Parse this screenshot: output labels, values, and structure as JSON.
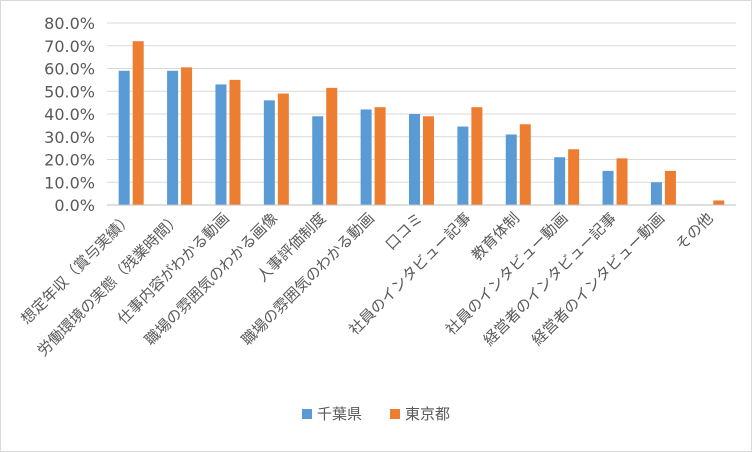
{
  "chart_data": {
    "type": "bar",
    "title": "",
    "xlabel": "",
    "ylabel": "",
    "ylim": [
      0,
      0.8
    ],
    "y_ticks": [
      "0.0%",
      "10.0%",
      "20.0%",
      "30.0%",
      "40.0%",
      "50.0%",
      "60.0%",
      "70.0%",
      "80.0%"
    ],
    "grid": true,
    "legend_position": "bottom",
    "categories": [
      "想定年収（賞与実績）",
      "労働環境の実態（残業時間）",
      "仕事内容がわかる動画",
      "職場の雰囲気のわかる画像",
      "人事評価制度",
      "職場の雰囲気のわかる動画",
      "口コミ",
      "社員のインタビュー記事",
      "教育体制",
      "社員のインタビュー動画",
      "経営者のインタビュー記事",
      "経営者のインタビュー動画",
      "その他"
    ],
    "series": [
      {
        "name": "千葉県",
        "color": "#5b9bd5",
        "values": [
          0.59,
          0.59,
          0.53,
          0.46,
          0.39,
          0.42,
          0.4,
          0.345,
          0.31,
          0.21,
          0.15,
          0.1,
          0.0
        ]
      },
      {
        "name": "東京都",
        "color": "#ed7d31",
        "values": [
          0.72,
          0.605,
          0.55,
          0.49,
          0.515,
          0.43,
          0.39,
          0.43,
          0.355,
          0.245,
          0.205,
          0.15,
          0.02
        ]
      }
    ]
  }
}
